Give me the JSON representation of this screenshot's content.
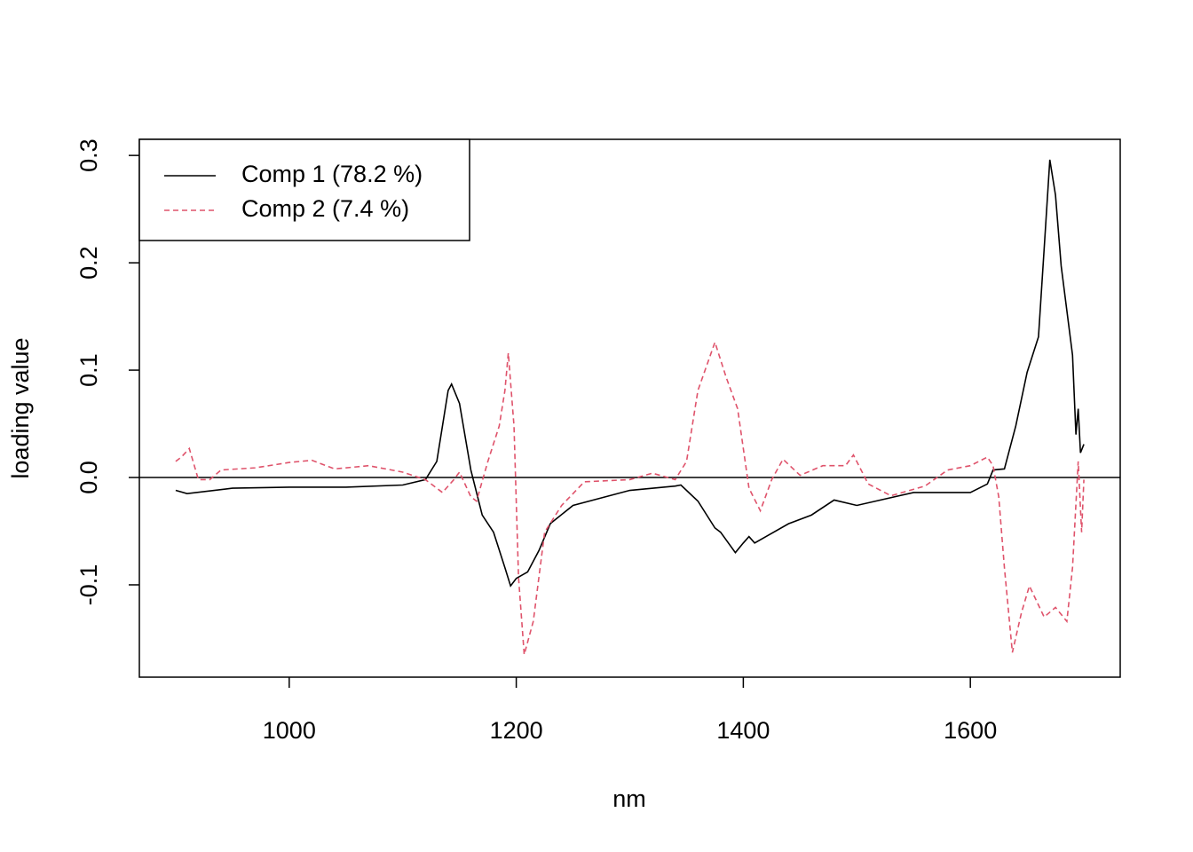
{
  "chart_data": {
    "type": "line",
    "xlabel": "nm",
    "ylabel": "loading value",
    "xlim": [
      868,
      1732
    ],
    "ylim": [
      -0.186,
      0.315
    ],
    "xticks": [
      1000,
      1200,
      1400,
      1600
    ],
    "yticks": [
      -0.1,
      {
        "value": 0,
        "label": "0.0"
      },
      0.1,
      0.2,
      0.3
    ],
    "hline": 0,
    "legend": "top-left",
    "series": [
      {
        "name": "Comp 1 (78.2 %)",
        "color": "#000000",
        "linestyle": "solid",
        "x": [
          900,
          910,
          950,
          1000,
          1050,
          1100,
          1120,
          1130,
          1140,
          1143,
          1150,
          1160,
          1170,
          1180,
          1190,
          1195,
          1200,
          1210,
          1220,
          1230,
          1250,
          1300,
          1340,
          1345,
          1360,
          1375,
          1380,
          1393,
          1400,
          1405,
          1410,
          1420,
          1440,
          1460,
          1480,
          1500,
          1550,
          1600,
          1615,
          1620,
          1630,
          1640,
          1650,
          1660,
          1665,
          1670,
          1675,
          1680,
          1690,
          1693,
          1695,
          1697,
          1700
        ],
        "values": [
          -0.012,
          -0.015,
          -0.01,
          -0.009,
          -0.009,
          -0.007,
          -0.002,
          0.015,
          0.081,
          0.087,
          0.069,
          0.007,
          -0.035,
          -0.051,
          -0.084,
          -0.101,
          -0.094,
          -0.088,
          -0.068,
          -0.043,
          -0.026,
          -0.012,
          -0.008,
          -0.007,
          -0.022,
          -0.047,
          -0.051,
          -0.07,
          -0.061,
          -0.055,
          -0.061,
          -0.055,
          -0.043,
          -0.035,
          -0.021,
          -0.026,
          -0.014,
          -0.014,
          -0.006,
          0.007,
          0.008,
          0.048,
          0.098,
          0.131,
          0.213,
          0.296,
          0.263,
          0.197,
          0.114,
          0.04,
          0.064,
          0.023,
          0.031
        ]
      },
      {
        "name": "Comp 2 (7.4 %)",
        "color": "#df536b",
        "linestyle": "dashed",
        "x": [
          900,
          905,
          912,
          920,
          930,
          940,
          970,
          1000,
          1020,
          1040,
          1070,
          1100,
          1120,
          1135,
          1145,
          1150,
          1160,
          1165,
          1175,
          1185,
          1190,
          1193,
          1198,
          1202,
          1207,
          1215,
          1225,
          1240,
          1260,
          1300,
          1320,
          1340,
          1350,
          1360,
          1375,
          1385,
          1395,
          1405,
          1415,
          1425,
          1435,
          1450,
          1470,
          1490,
          1497,
          1510,
          1530,
          1560,
          1580,
          1600,
          1615,
          1620,
          1625,
          1630,
          1637,
          1645,
          1652,
          1665,
          1675,
          1685,
          1690,
          1695,
          1698,
          1700
        ],
        "values": [
          0.015,
          0.019,
          0.027,
          -0.002,
          -0.002,
          0.007,
          0.009,
          0.014,
          0.016,
          0.008,
          0.011,
          0.005,
          -0.002,
          -0.014,
          -0.002,
          0.005,
          -0.018,
          -0.022,
          0.015,
          0.048,
          0.081,
          0.116,
          0.048,
          -0.093,
          -0.165,
          -0.134,
          -0.051,
          -0.026,
          -0.004,
          -0.002,
          0.004,
          -0.002,
          0.015,
          0.081,
          0.126,
          0.093,
          0.064,
          -0.01,
          -0.031,
          -0.002,
          0.017,
          0.002,
          0.011,
          0.011,
          0.021,
          -0.006,
          -0.017,
          -0.008,
          0.007,
          0.011,
          0.019,
          0.011,
          -0.018,
          -0.084,
          -0.163,
          -0.126,
          -0.101,
          -0.13,
          -0.121,
          -0.134,
          -0.084,
          0.015,
          -0.051,
          -0.002
        ]
      }
    ]
  }
}
